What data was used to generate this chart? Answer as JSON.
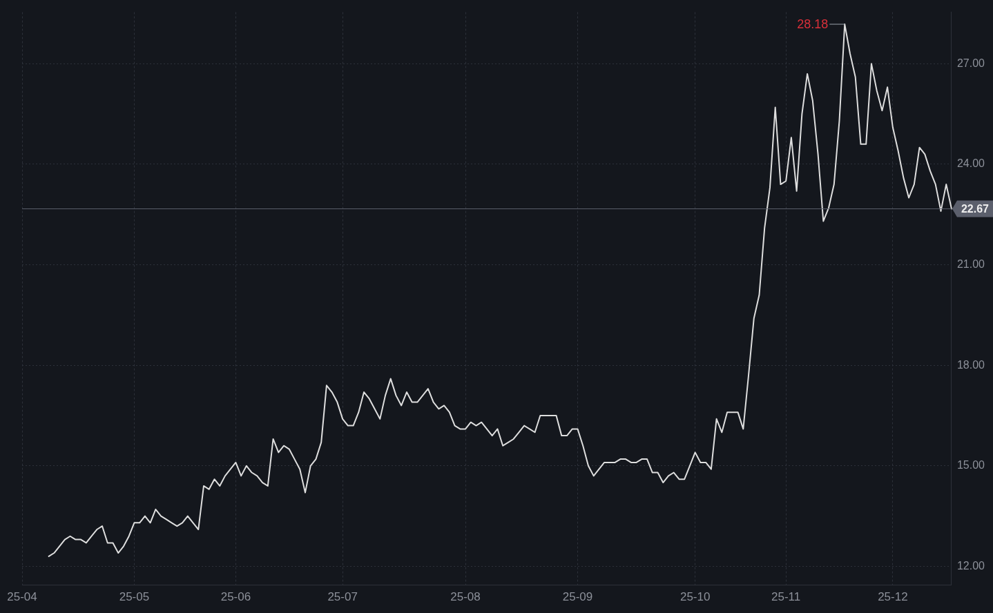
{
  "chart_data": {
    "type": "line",
    "categories": [
      "25-04",
      null,
      null,
      null,
      null,
      null,
      null,
      null,
      null,
      null,
      null,
      null,
      null,
      null,
      null,
      null,
      null,
      null,
      null,
      null,
      null,
      "25-05",
      null,
      null,
      null,
      null,
      null,
      null,
      null,
      null,
      null,
      null,
      null,
      null,
      null,
      null,
      null,
      null,
      null,
      null,
      "25-06",
      null,
      null,
      null,
      null,
      null,
      null,
      null,
      null,
      null,
      null,
      null,
      null,
      null,
      null,
      null,
      null,
      null,
      null,
      null,
      "25-07",
      null,
      null,
      null,
      null,
      null,
      null,
      null,
      null,
      null,
      null,
      null,
      null,
      null,
      null,
      null,
      null,
      null,
      null,
      null,
      null,
      null,
      null,
      "25-08",
      null,
      null,
      null,
      null,
      null,
      null,
      null,
      null,
      null,
      null,
      null,
      null,
      null,
      null,
      null,
      null,
      null,
      null,
      null,
      null,
      "25-09",
      null,
      null,
      null,
      null,
      null,
      null,
      null,
      null,
      null,
      null,
      null,
      null,
      null,
      null,
      null,
      null,
      null,
      null,
      null,
      null,
      null,
      "25-10",
      null,
      null,
      null,
      null,
      null,
      null,
      null,
      null,
      null,
      null,
      null,
      null,
      null,
      null,
      null,
      null,
      "25-11",
      null,
      null,
      null,
      null,
      null,
      null,
      null,
      null,
      null,
      null,
      null,
      null,
      null,
      null,
      null,
      null,
      null,
      null,
      null,
      "25-12",
      null,
      null,
      null,
      null,
      null,
      null,
      null,
      null,
      null,
      null,
      null
    ],
    "series": [
      {
        "color": "#dedede",
        "values": [
          null,
          null,
          null,
          null,
          null,
          12.3,
          12.4,
          12.6,
          12.8,
          12.9,
          12.8,
          12.8,
          12.7,
          12.9,
          13.1,
          13.2,
          12.7,
          12.7,
          12.4,
          12.6,
          12.9,
          13.3,
          13.3,
          13.5,
          13.3,
          13.7,
          13.5,
          13.4,
          13.3,
          13.2,
          13.3,
          13.5,
          13.3,
          13.1,
          14.4,
          14.3,
          14.6,
          14.4,
          14.7,
          14.9,
          15.1,
          14.7,
          15.0,
          14.8,
          14.7,
          14.5,
          14.4,
          15.8,
          15.4,
          15.6,
          15.5,
          15.2,
          14.9,
          14.2,
          15.0,
          15.2,
          15.7,
          17.4,
          17.2,
          16.9,
          16.4,
          16.2,
          16.2,
          16.6,
          17.2,
          17.0,
          16.7,
          16.4,
          17.1,
          17.6,
          17.1,
          16.8,
          17.2,
          16.9,
          16.9,
          17.1,
          17.3,
          16.9,
          16.7,
          16.8,
          16.6,
          16.2,
          16.1,
          16.1,
          16.3,
          16.2,
          16.3,
          16.1,
          15.9,
          16.1,
          15.6,
          15.7,
          15.8,
          16.0,
          16.2,
          16.1,
          16.0,
          16.5,
          16.5,
          16.5,
          16.5,
          15.9,
          15.9,
          16.1,
          16.1,
          15.6,
          15.0,
          14.7,
          14.9,
          15.1,
          15.1,
          15.1,
          15.2,
          15.2,
          15.1,
          15.1,
          15.2,
          15.2,
          14.8,
          14.8,
          14.5,
          14.7,
          14.8,
          14.6,
          14.6,
          15.0,
          15.4,
          15.1,
          15.1,
          14.9,
          16.4,
          16.0,
          16.6,
          16.6,
          16.6,
          16.1,
          17.7,
          19.4,
          20.1,
          22.1,
          23.3,
          25.7,
          23.4,
          23.5,
          24.8,
          23.2,
          25.5,
          26.7,
          25.9,
          24.3,
          22.3,
          22.7,
          23.4,
          25.3,
          28.18,
          27.3,
          26.6,
          24.6,
          24.6,
          27.0,
          26.2,
          25.6,
          26.3,
          25.1,
          24.4,
          23.6,
          23.0,
          23.4,
          24.5,
          24.3,
          23.8,
          23.4,
          22.6,
          23.4,
          22.67
        ]
      }
    ],
    "ylim": [
      11.44,
      28.54
    ],
    "yticks": [
      {
        "value": 12,
        "label": "12.00"
      },
      {
        "value": 15,
        "label": "15.00"
      },
      {
        "value": 18,
        "label": "18.00"
      },
      {
        "value": 21,
        "label": "21.00"
      },
      {
        "value": 24,
        "label": "24.00"
      },
      {
        "value": 27,
        "label": "27.00"
      }
    ],
    "grid": true,
    "annotations": [
      "28.18"
    ],
    "ref_lines": [
      {
        "axis": "y",
        "value": 22.67,
        "label": "22.67",
        "color": "#5b5f6c"
      }
    ]
  }
}
